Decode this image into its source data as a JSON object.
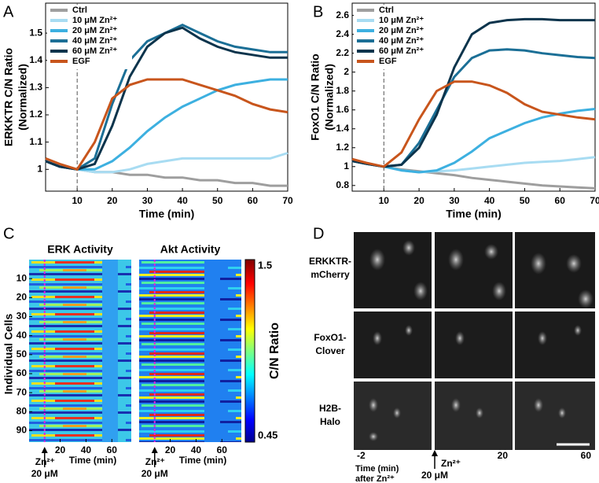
{
  "chart_data": [
    {
      "type": "line",
      "panel": "A",
      "ylabel": [
        "ERKKTR C/N Ratio",
        "(Normalized)"
      ],
      "xlabel": "Time (min)",
      "x": [
        1,
        5,
        10,
        15,
        20,
        25,
        30,
        35,
        40,
        45,
        50,
        55,
        60,
        65,
        70
      ],
      "xlim": [
        1,
        70
      ],
      "xticks": [
        10,
        20,
        30,
        40,
        50,
        60,
        70
      ],
      "ylim": [
        0.92,
        1.61
      ],
      "yticks": [
        1,
        1.1,
        1.2,
        1.3,
        1.4,
        1.5
      ],
      "marker_line": 10,
      "legend": "upper left",
      "series": [
        {
          "name": "Ctrl",
          "color": "#9e9e9e",
          "values": [
            1.03,
            1.01,
            1.0,
            0.99,
            0.99,
            0.98,
            0.98,
            0.97,
            0.97,
            0.96,
            0.96,
            0.95,
            0.95,
            0.94,
            0.94
          ]
        },
        {
          "name": "10 μM Zn²⁺",
          "color": "#a8dcf2",
          "values": [
            1.03,
            1.01,
            1.0,
            0.99,
            0.99,
            1.0,
            1.02,
            1.03,
            1.04,
            1.04,
            1.04,
            1.04,
            1.04,
            1.04,
            1.06
          ]
        },
        {
          "name": "20 μM Zn²⁺",
          "color": "#3db0e0",
          "values": [
            1.03,
            1.01,
            1.0,
            1.0,
            1.03,
            1.08,
            1.14,
            1.19,
            1.23,
            1.26,
            1.29,
            1.31,
            1.32,
            1.33,
            1.33
          ]
        },
        {
          "name": "40 μM Zn²⁺",
          "color": "#1b6f96",
          "values": [
            1.03,
            1.01,
            1.0,
            1.04,
            1.24,
            1.4,
            1.47,
            1.5,
            1.53,
            1.5,
            1.47,
            1.45,
            1.44,
            1.43,
            1.43
          ]
        },
        {
          "name": "60 μM Zn²⁺",
          "color": "#0c344c",
          "values": [
            1.03,
            1.01,
            1.0,
            1.02,
            1.16,
            1.34,
            1.45,
            1.5,
            1.52,
            1.48,
            1.45,
            1.43,
            1.42,
            1.41,
            1.41
          ]
        },
        {
          "name": "EGF",
          "color": "#c8551c",
          "values": [
            1.04,
            1.02,
            1.0,
            1.1,
            1.26,
            1.31,
            1.33,
            1.33,
            1.33,
            1.31,
            1.29,
            1.27,
            1.24,
            1.22,
            1.21
          ]
        }
      ]
    },
    {
      "type": "line",
      "panel": "B",
      "ylabel": [
        "FoxO1 C/N Ratio",
        "(Normalized)"
      ],
      "xlabel": "Time (min)",
      "x": [
        1,
        5,
        10,
        15,
        20,
        25,
        30,
        35,
        40,
        45,
        50,
        55,
        60,
        65,
        70
      ],
      "xlim": [
        1,
        70
      ],
      "xticks": [
        10,
        20,
        30,
        40,
        50,
        60,
        70
      ],
      "ylim": [
        0.74,
        2.73
      ],
      "yticks": [
        0.8,
        1,
        1.2,
        1.4,
        1.6,
        1.8,
        2,
        2.2,
        2.4,
        2.6
      ],
      "marker_line": 10,
      "legend": "upper left",
      "series": [
        {
          "name": "Ctrl",
          "color": "#9e9e9e",
          "values": [
            1.06,
            1.03,
            1.0,
            0.97,
            0.95,
            0.93,
            0.91,
            0.88,
            0.86,
            0.84,
            0.82,
            0.8,
            0.79,
            0.78,
            0.77
          ]
        },
        {
          "name": "10 μM Zn²⁺",
          "color": "#a8dcf2",
          "values": [
            1.06,
            1.03,
            1.0,
            0.96,
            0.94,
            0.95,
            0.96,
            0.98,
            1.0,
            1.02,
            1.04,
            1.05,
            1.06,
            1.08,
            1.1
          ]
        },
        {
          "name": "20 μM Zn²⁺",
          "color": "#3db0e0",
          "values": [
            1.06,
            1.03,
            1.0,
            0.96,
            0.94,
            0.96,
            1.04,
            1.16,
            1.3,
            1.38,
            1.46,
            1.52,
            1.56,
            1.59,
            1.61
          ]
        },
        {
          "name": "40 μM Zn²⁺",
          "color": "#1b6f96",
          "values": [
            1.06,
            1.03,
            1.0,
            1.02,
            1.25,
            1.6,
            1.95,
            2.15,
            2.23,
            2.24,
            2.23,
            2.2,
            2.18,
            2.16,
            2.15
          ]
        },
        {
          "name": "60 μM Zn²⁺",
          "color": "#0c344c",
          "values": [
            1.06,
            1.03,
            1.0,
            1.02,
            1.2,
            1.55,
            2.05,
            2.4,
            2.52,
            2.55,
            2.56,
            2.56,
            2.55,
            2.55,
            2.55
          ]
        },
        {
          "name": "EGF",
          "color": "#c8551c",
          "values": [
            1.08,
            1.04,
            1.0,
            1.15,
            1.5,
            1.8,
            1.9,
            1.9,
            1.86,
            1.78,
            1.66,
            1.58,
            1.55,
            1.52,
            1.5
          ]
        }
      ]
    },
    {
      "type": "heatmap",
      "panel": "C",
      "subtitles": [
        "ERK Activity",
        "Akt Activity"
      ],
      "ylabel": "Individual Cells",
      "xlabel": "Time (min)",
      "xlim": [
        -4,
        75
      ],
      "xticks": [
        20,
        40,
        60
      ],
      "ylim": [
        0,
        96
      ],
      "yticks": [
        10,
        20,
        30,
        40,
        50,
        60,
        70,
        80,
        90
      ],
      "marker_line": 8,
      "annotation": [
        "Zn²⁺",
        "20 μM"
      ],
      "colorbar": {
        "lim": [
          0.45,
          1.5
        ],
        "ticks": [
          0.45,
          1.5
        ],
        "label": "C/N Ratio"
      }
    }
  ],
  "image_panel": {
    "panel": "D",
    "rows": [
      [
        "ERKKTR-",
        "mCherry"
      ],
      [
        "FoxO1-",
        "Clover"
      ],
      [
        "H2B-",
        "Halo"
      ]
    ],
    "time_labels": [
      "-2",
      "20",
      "60"
    ],
    "time_caption": [
      "Time (min)",
      "after Zn²⁺"
    ],
    "stim": [
      "Zn²⁺",
      "20 μM"
    ]
  }
}
